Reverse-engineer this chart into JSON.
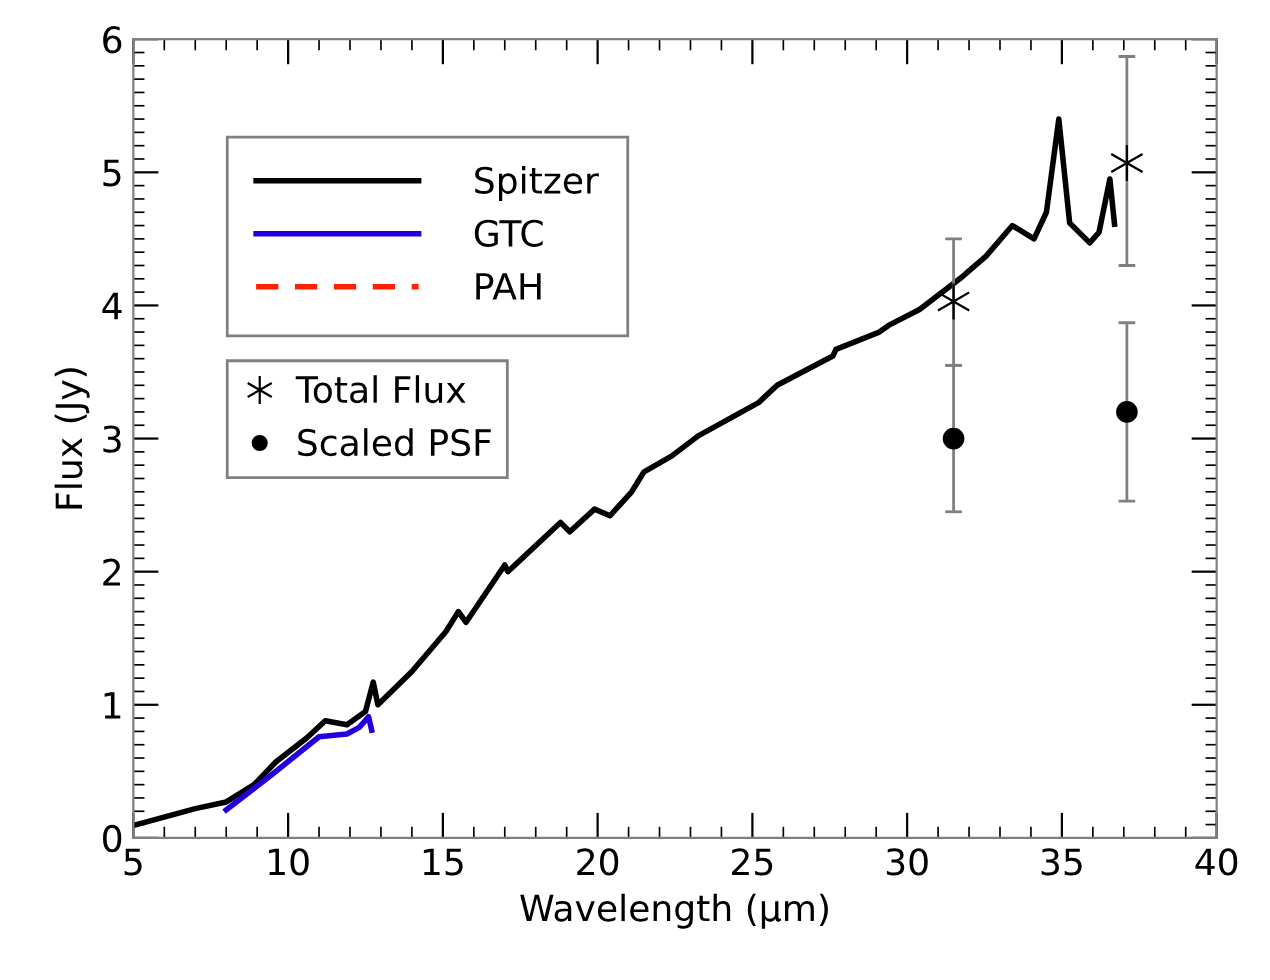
{
  "chart_data": {
    "type": "line",
    "xlabel": "Wavelength (μm)",
    "ylabel": "Flux (Jy)",
    "xlim": [
      5,
      40
    ],
    "ylim": [
      0,
      6
    ],
    "xticks": [
      5,
      10,
      15,
      20,
      25,
      30,
      35,
      40
    ],
    "yticks": [
      0,
      1,
      2,
      3,
      4,
      5,
      6
    ],
    "grid": false,
    "legend": "top left",
    "series": [
      {
        "name": "Spitzer",
        "color": "#000000",
        "line_style": "solid",
        "marker": "none",
        "x": [
          5.1,
          7.0,
          8.0,
          8.9,
          9.6,
          10.6,
          11.2,
          11.9,
          12.5,
          12.75,
          12.9,
          14.0,
          15.1,
          15.5,
          15.75,
          17.0,
          17.1,
          18.8,
          19.1,
          19.9,
          20.4,
          21.1,
          21.5,
          22.4,
          23.25,
          25.2,
          25.8,
          27.6,
          27.7,
          29.1,
          29.4,
          30.4,
          31.7,
          32.55,
          33.4,
          34.1,
          34.5,
          34.9,
          35.25,
          35.9,
          36.2,
          36.55,
          36.7
        ],
        "values": [
          0.1,
          0.22,
          0.27,
          0.4,
          0.57,
          0.75,
          0.88,
          0.85,
          0.95,
          1.17,
          1.0,
          1.25,
          1.55,
          1.7,
          1.62,
          2.05,
          2.0,
          2.37,
          2.3,
          2.47,
          2.42,
          2.6,
          2.75,
          2.87,
          3.02,
          3.27,
          3.4,
          3.62,
          3.67,
          3.8,
          3.85,
          3.97,
          4.2,
          4.37,
          4.6,
          4.5,
          4.7,
          5.4,
          4.62,
          4.47,
          4.55,
          4.95,
          4.61
        ]
      },
      {
        "name": "GTC",
        "color": "#2200dd",
        "line_style": "solid",
        "marker": "none",
        "x": [
          8.0,
          9.5,
          11.0,
          11.9,
          12.3,
          12.6,
          12.7
        ],
        "values": [
          0.21,
          0.48,
          0.76,
          0.78,
          0.83,
          0.91,
          0.81
        ]
      },
      {
        "name": "PAH",
        "color": "#ff2200",
        "line_style": "dashed",
        "marker": "none"
      },
      {
        "name": "Total Flux",
        "type": "scatter",
        "color": "#000000",
        "marker": "cross",
        "x": [
          31.5,
          37.1
        ],
        "values": [
          4.03,
          5.07
        ],
        "errors": [
          [
            3.55,
            4.5
          ],
          [
            4.3,
            5.87
          ]
        ]
      },
      {
        "name": "Scaled PSF",
        "type": "scatter",
        "color": "#000000",
        "marker": "circle",
        "x": [
          31.5,
          37.1
        ],
        "values": [
          3.0,
          3.2
        ],
        "errors": [
          [
            2.45,
            3.55
          ],
          [
            2.53,
            3.87
          ]
        ]
      }
    ]
  }
}
